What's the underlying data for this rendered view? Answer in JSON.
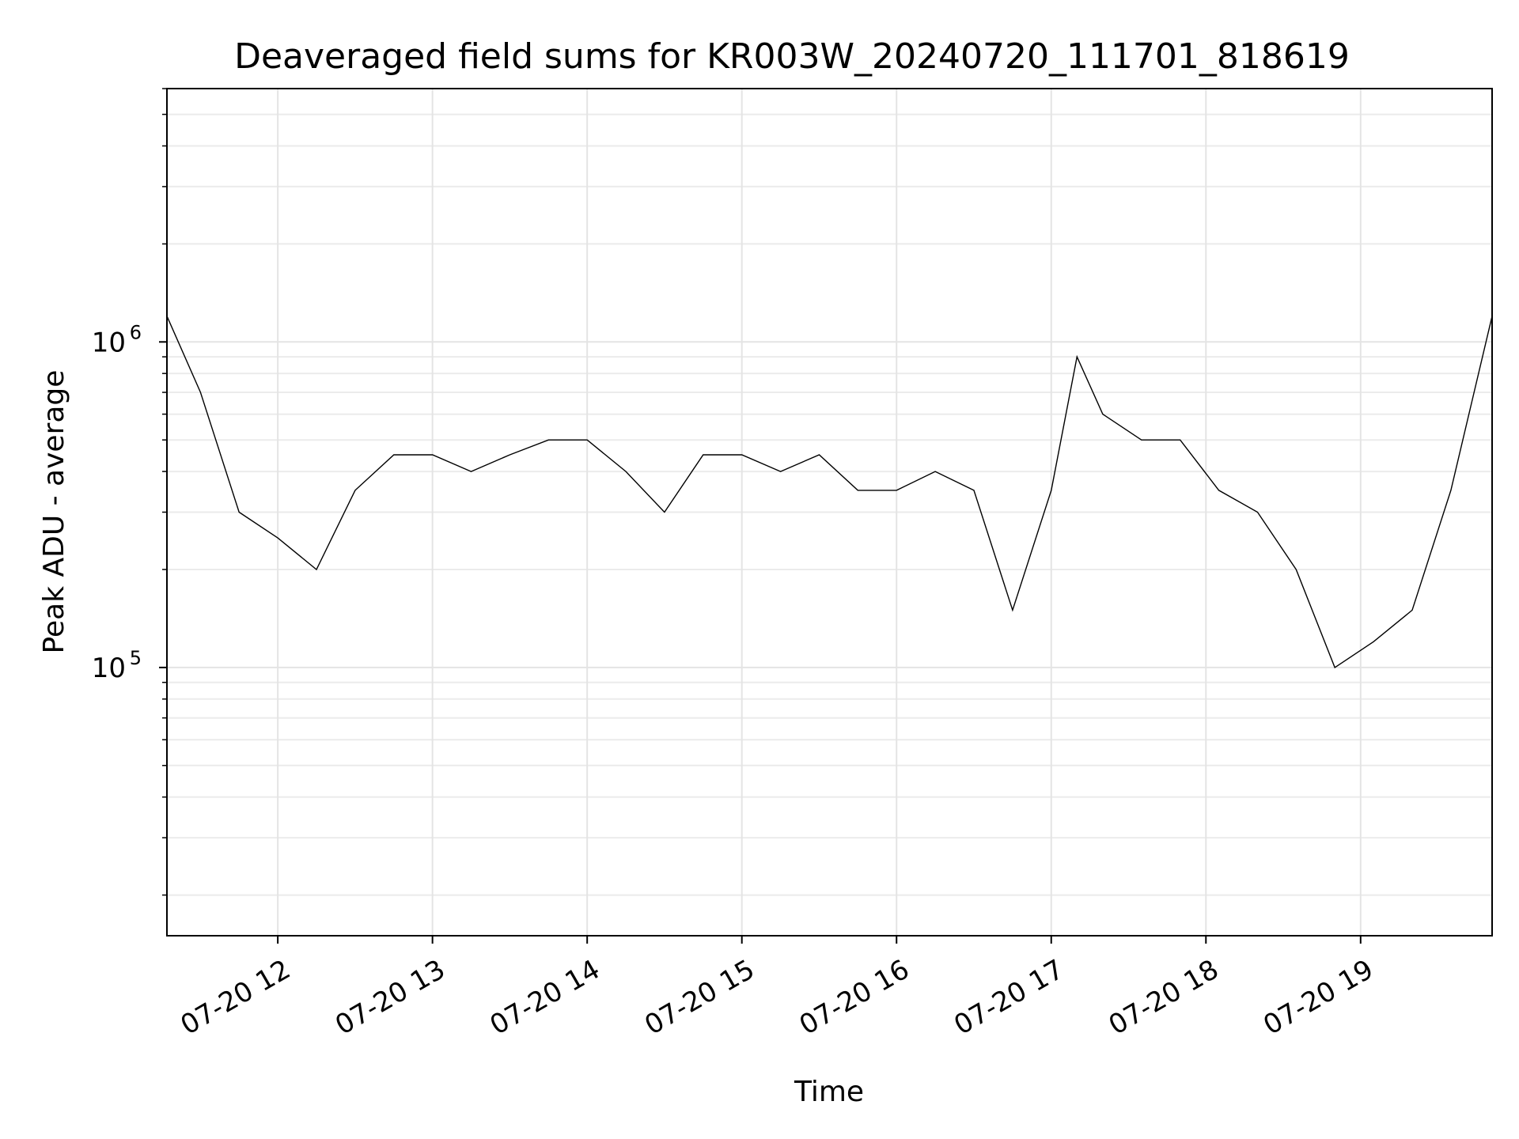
{
  "chart_data": {
    "type": "line",
    "title": "Deaveraged field sums for KR003W_20240720_111701_818619",
    "xlabel": "Time",
    "ylabel": "Peak ADU - average",
    "yscale": "log",
    "grid": true,
    "xlim": [
      "2024-07-20 11:17",
      "2024-07-20 19:51"
    ],
    "ylim": [
      15000,
      6000000
    ],
    "x_ticks": [
      {
        "value": "2024-07-20 12:00",
        "label": "07-20 12"
      },
      {
        "value": "2024-07-20 13:00",
        "label": "07-20 13"
      },
      {
        "value": "2024-07-20 14:00",
        "label": "07-20 14"
      },
      {
        "value": "2024-07-20 15:00",
        "label": "07-20 15"
      },
      {
        "value": "2024-07-20 16:00",
        "label": "07-20 16"
      },
      {
        "value": "2024-07-20 17:00",
        "label": "07-20 17"
      },
      {
        "value": "2024-07-20 18:00",
        "label": "07-20 18"
      },
      {
        "value": "2024-07-20 19:00",
        "label": "07-20 19"
      }
    ],
    "y_ticks": [
      {
        "value": 100000,
        "base": "10",
        "exp": "5"
      },
      {
        "value": 1000000,
        "base": "10",
        "exp": "6"
      }
    ],
    "series": [
      {
        "color": "#000000",
        "x": [
          "2024-07-20 11:17",
          "2024-07-20 11:30",
          "2024-07-20 11:45",
          "2024-07-20 12:00",
          "2024-07-20 12:15",
          "2024-07-20 12:30",
          "2024-07-20 12:45",
          "2024-07-20 13:00",
          "2024-07-20 13:15",
          "2024-07-20 13:30",
          "2024-07-20 13:45",
          "2024-07-20 14:00",
          "2024-07-20 14:15",
          "2024-07-20 14:30",
          "2024-07-20 14:45",
          "2024-07-20 15:00",
          "2024-07-20 15:15",
          "2024-07-20 15:30",
          "2024-07-20 15:45",
          "2024-07-20 16:00",
          "2024-07-20 16:15",
          "2024-07-20 16:30",
          "2024-07-20 16:45",
          "2024-07-20 17:00",
          "2024-07-20 17:10",
          "2024-07-20 17:20",
          "2024-07-20 17:35",
          "2024-07-20 17:50",
          "2024-07-20 18:05",
          "2024-07-20 18:20",
          "2024-07-20 18:35",
          "2024-07-20 18:50",
          "2024-07-20 19:05",
          "2024-07-20 19:20",
          "2024-07-20 19:35",
          "2024-07-20 19:51"
        ],
        "y": [
          1200000,
          700000,
          300000,
          250000,
          200000,
          350000,
          450000,
          450000,
          400000,
          450000,
          500000,
          500000,
          400000,
          300000,
          450000,
          450000,
          400000,
          450000,
          350000,
          350000,
          400000,
          350000,
          150000,
          350000,
          900000,
          600000,
          500000,
          500000,
          350000,
          300000,
          200000,
          100000,
          120000,
          150000,
          350000,
          1200000
        ]
      }
    ]
  }
}
